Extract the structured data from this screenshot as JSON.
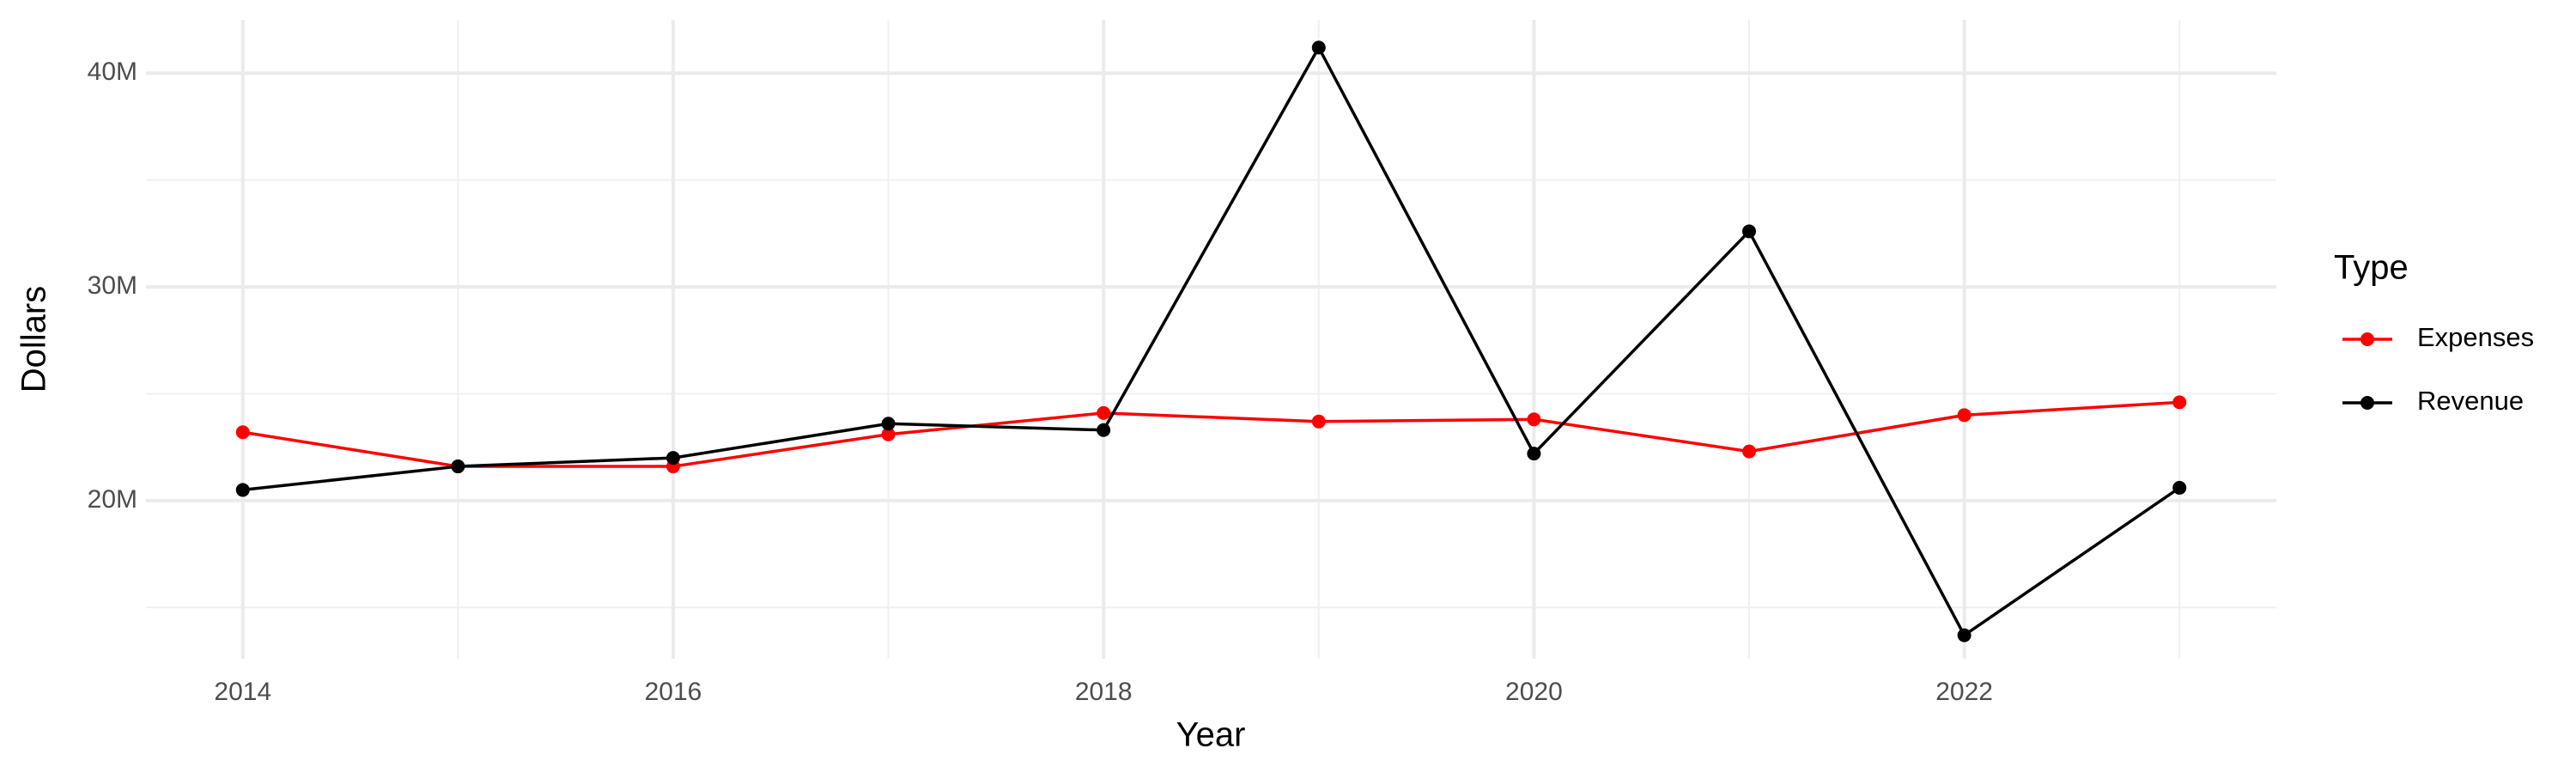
{
  "chart_data": {
    "type": "line",
    "x_label": "Year",
    "y_label": "Dollars",
    "legend_title": "Type",
    "legend": "right",
    "grid": true,
    "x": [
      2014,
      2015,
      2016,
      2017,
      2018,
      2019,
      2020,
      2021,
      2022,
      2023
    ],
    "series": [
      {
        "name": "Expenses",
        "color": "#ff0000",
        "values": [
          23200000,
          21600000,
          21600000,
          23100000,
          24100000,
          23700000,
          23800000,
          22300000,
          24000000,
          24600000
        ]
      },
      {
        "name": "Revenue",
        "color": "#000000",
        "values": [
          20500000,
          21600000,
          22000000,
          23600000,
          23300000,
          41200000,
          22200000,
          32600000,
          13700000,
          20600000
        ]
      }
    ],
    "xlim": [
      2013.55,
      2023.45
    ],
    "xticks": [
      2014,
      2016,
      2018,
      2020,
      2022
    ],
    "xminor": [
      2015,
      2017,
      2019,
      2021,
      2023
    ],
    "ylim": [
      12600000,
      42500000
    ],
    "yticks": [
      {
        "value": 20000000,
        "label": "20M"
      },
      {
        "value": 30000000,
        "label": "30M"
      },
      {
        "value": 40000000,
        "label": "40M"
      }
    ],
    "yminor": [
      15000000,
      25000000,
      35000000
    ]
  }
}
